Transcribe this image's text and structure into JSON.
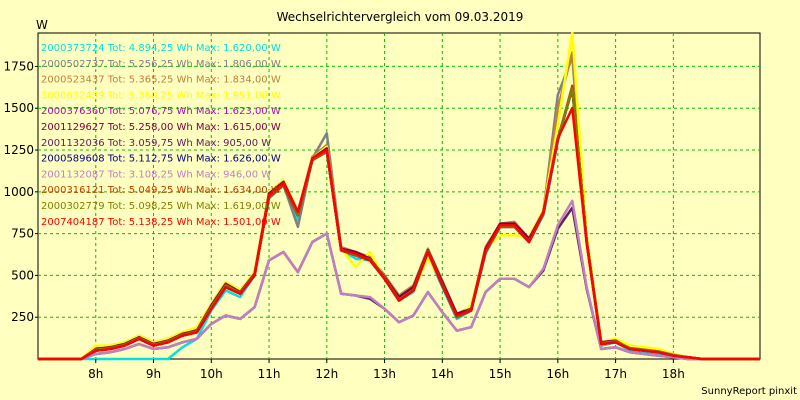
{
  "chart_data": {
    "type": "line",
    "title": "Wechselrichtervergleich vom 09.03.2019",
    "ylabel": "W",
    "xlabel": "",
    "footer": "SunnyReport pinxit",
    "ylim": [
      0,
      1950
    ],
    "xlim": [
      7.0,
      19.5
    ],
    "grid": true,
    "legend_position": "top-left",
    "x_ticks": [
      {
        "value": 8,
        "label": "8h"
      },
      {
        "value": 9,
        "label": "9h"
      },
      {
        "value": 10,
        "label": "10h"
      },
      {
        "value": 11,
        "label": "11h"
      },
      {
        "value": 12,
        "label": "12h"
      },
      {
        "value": 13,
        "label": "13h"
      },
      {
        "value": 14,
        "label": "14h"
      },
      {
        "value": 15,
        "label": "15h"
      },
      {
        "value": 16,
        "label": "16h"
      },
      {
        "value": 17,
        "label": "17h"
      },
      {
        "value": 18,
        "label": "18h"
      }
    ],
    "y_ticks": [
      250,
      500,
      750,
      1000,
      1250,
      1500,
      1750
    ],
    "x": [
      7.0,
      7.25,
      7.5,
      7.75,
      8.0,
      8.25,
      8.5,
      8.75,
      9.0,
      9.25,
      9.5,
      9.75,
      10.0,
      10.25,
      10.5,
      10.75,
      11.0,
      11.25,
      11.5,
      11.75,
      12.0,
      12.25,
      12.5,
      12.75,
      13.0,
      13.25,
      13.5,
      13.75,
      14.0,
      14.25,
      14.5,
      14.75,
      15.0,
      15.25,
      15.5,
      15.75,
      16.0,
      16.25,
      16.5,
      16.75,
      17.0,
      17.25,
      17.5,
      17.75,
      18.0,
      18.25,
      18.5,
      18.75,
      19.0,
      19.25,
      19.5
    ],
    "series": [
      {
        "name": "2000373724 Tot: 4.894,25 Wh Max: 1.620,00 W",
        "color": "#00e0e0",
        "values": [
          0,
          0,
          0,
          0,
          0,
          0,
          0,
          0,
          0,
          0,
          70,
          120,
          290,
          410,
          370,
          500,
          970,
          1040,
          830,
          1190,
          1240,
          650,
          600,
          590,
          480,
          350,
          400,
          620,
          430,
          240,
          290,
          630,
          790,
          790,
          700,
          860,
          1300,
          1620,
          700,
          80,
          100,
          50,
          40,
          30,
          20,
          10,
          0,
          0,
          0,
          0,
          0
        ]
      },
      {
        "name": "2000502737 Tot: 5.256,25 Wh Max: 1.806,00 W",
        "color": "#808080",
        "values": [
          0,
          0,
          0,
          0,
          60,
          70,
          90,
          130,
          90,
          110,
          150,
          170,
          320,
          450,
          400,
          510,
          960,
          1040,
          790,
          1200,
          1350,
          660,
          620,
          600,
          490,
          370,
          430,
          650,
          460,
          270,
          300,
          660,
          800,
          810,
          710,
          880,
          1580,
          1806,
          720,
          90,
          110,
          60,
          50,
          40,
          20,
          10,
          0,
          0,
          0,
          0,
          0
        ]
      },
      {
        "name": "2000523437 Tot: 5.365,25 Wh Max: 1.834,00 W",
        "color": "#c08040",
        "values": [
          0,
          0,
          0,
          0,
          70,
          80,
          100,
          140,
          100,
          120,
          160,
          180,
          330,
          460,
          410,
          520,
          990,
          1060,
          880,
          1210,
          1280,
          670,
          640,
          610,
          500,
          380,
          440,
          660,
          470,
          270,
          310,
          670,
          810,
          820,
          720,
          890,
          1500,
          1834,
          730,
          100,
          120,
          70,
          60,
          50,
          30,
          10,
          0,
          0,
          0,
          0,
          0
        ]
      },
      {
        "name": "3000632439 Tot: 5.360,25 Wh Max: 1.951,00 W",
        "color": "#ffff00",
        "values": [
          0,
          0,
          0,
          0,
          80,
          80,
          100,
          140,
          100,
          120,
          160,
          190,
          330,
          460,
          410,
          520,
          1000,
          1070,
          880,
          1200,
          1270,
          660,
          550,
          640,
          480,
          360,
          410,
          610,
          450,
          250,
          320,
          660,
          740,
          740,
          730,
          890,
          1400,
          1951,
          740,
          100,
          120,
          80,
          70,
          60,
          30,
          10,
          0,
          0,
          0,
          0,
          0
        ]
      },
      {
        "name": "2000376360 Tot: 5.076,75 Wh Max: 1.623,00 W",
        "color": "#c000c0",
        "values": [
          0,
          0,
          0,
          0,
          50,
          60,
          80,
          120,
          80,
          100,
          140,
          160,
          300,
          430,
          390,
          500,
          980,
          1050,
          860,
          1190,
          1240,
          650,
          620,
          590,
          480,
          350,
          410,
          640,
          450,
          260,
          290,
          640,
          790,
          800,
          700,
          870,
          1310,
          1623,
          700,
          90,
          100,
          60,
          50,
          40,
          20,
          10,
          0,
          0,
          0,
          0,
          0
        ]
      },
      {
        "name": "2001129627 Tot: 5.258,00 Wh Max: 1.615,00 W",
        "color": "#800040",
        "values": [
          0,
          0,
          0,
          0,
          60,
          70,
          90,
          130,
          90,
          110,
          150,
          170,
          320,
          450,
          400,
          510,
          990,
          1060,
          880,
          1200,
          1260,
          660,
          640,
          600,
          490,
          370,
          430,
          650,
          460,
          270,
          300,
          660,
          810,
          810,
          720,
          880,
          1320,
          1615,
          710,
          100,
          110,
          60,
          50,
          40,
          20,
          10,
          0,
          0,
          0,
          0,
          0
        ]
      },
      {
        "name": "2001132036 Tot: 3.059,75 Wh Max: 905,00 W",
        "color": "#602060",
        "values": [
          0,
          0,
          0,
          0,
          30,
          40,
          60,
          90,
          60,
          70,
          100,
          120,
          210,
          260,
          240,
          310,
          590,
          640,
          520,
          700,
          750,
          390,
          380,
          360,
          300,
          220,
          260,
          400,
          280,
          170,
          190,
          400,
          480,
          480,
          430,
          530,
          780,
          905,
          420,
          60,
          70,
          40,
          30,
          20,
          10,
          0,
          0,
          0,
          0,
          0,
          0
        ]
      },
      {
        "name": "2000589608 Tot: 5.112,75 Wh Max: 1.626,00 W",
        "color": "#000080",
        "values": [
          0,
          0,
          0,
          0,
          50,
          60,
          80,
          120,
          80,
          100,
          140,
          160,
          300,
          430,
          390,
          500,
          970,
          1040,
          860,
          1190,
          1240,
          650,
          620,
          590,
          480,
          350,
          410,
          640,
          440,
          250,
          290,
          640,
          790,
          790,
          700,
          870,
          1310,
          1626,
          700,
          90,
          100,
          60,
          50,
          40,
          20,
          10,
          0,
          0,
          0,
          0,
          0
        ]
      },
      {
        "name": "2001132087 Tot: 3.108,25 Wh Max: 946,00 W",
        "color": "#c080c0",
        "values": [
          0,
          0,
          0,
          0,
          30,
          40,
          60,
          90,
          60,
          70,
          100,
          120,
          210,
          260,
          240,
          310,
          590,
          640,
          520,
          700,
          750,
          390,
          380,
          370,
          300,
          220,
          260,
          400,
          280,
          170,
          190,
          400,
          480,
          480,
          430,
          540,
          800,
          946,
          430,
          60,
          70,
          40,
          30,
          20,
          10,
          0,
          0,
          0,
          0,
          0,
          0
        ]
      },
      {
        "name": "2000316121 Tot: 5.049,25 Wh Max: 1.634,00 W",
        "color": "#c04000",
        "values": [
          0,
          0,
          0,
          0,
          50,
          60,
          80,
          120,
          80,
          100,
          140,
          160,
          300,
          430,
          390,
          500,
          970,
          1040,
          860,
          1190,
          1240,
          650,
          620,
          590,
          480,
          350,
          410,
          640,
          440,
          250,
          290,
          640,
          790,
          790,
          700,
          870,
          1310,
          1634,
          700,
          90,
          100,
          60,
          50,
          40,
          20,
          10,
          0,
          0,
          0,
          0,
          0
        ]
      },
      {
        "name": "2000302779 Tot: 5.098,25 Wh Max: 1.619,00 W",
        "color": "#808000",
        "values": [
          0,
          0,
          0,
          0,
          55,
          65,
          85,
          125,
          85,
          105,
          145,
          165,
          310,
          440,
          395,
          505,
          980,
          1050,
          865,
          1195,
          1245,
          655,
          625,
          595,
          485,
          355,
          415,
          645,
          445,
          255,
          295,
          645,
          795,
          795,
          705,
          875,
          1315,
          1619,
          705,
          95,
          105,
          65,
          55,
          45,
          25,
          10,
          0,
          0,
          0,
          0,
          0
        ]
      },
      {
        "name": "2007404187 Tot: 5.138,25 Wh Max: 1.501,00 W",
        "color": "#ff0000",
        "values": [
          0,
          0,
          0,
          0,
          50,
          60,
          80,
          120,
          80,
          100,
          140,
          160,
          300,
          430,
          390,
          500,
          980,
          1050,
          880,
          1200,
          1250,
          650,
          630,
          590,
          480,
          350,
          410,
          640,
          440,
          260,
          290,
          650,
          800,
          800,
          700,
          880,
          1320,
          1501,
          690,
          90,
          100,
          60,
          50,
          40,
          20,
          10,
          0,
          0,
          0,
          0,
          0
        ]
      }
    ]
  }
}
